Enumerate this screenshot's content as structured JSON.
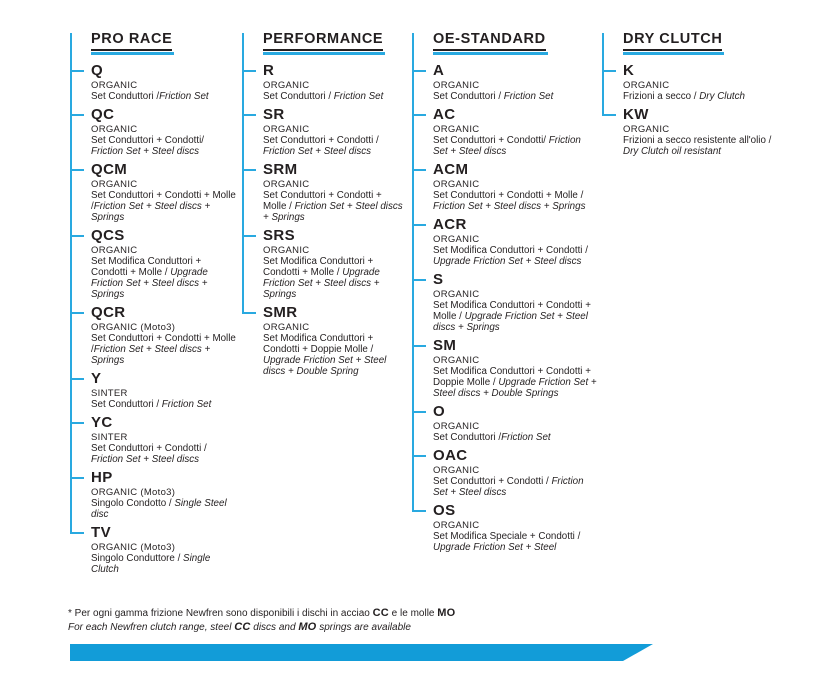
{
  "colors": {
    "accent_line": "#29A9E0",
    "stripe": "#129CD8",
    "text": "#231F20"
  },
  "columns": [
    {
      "title": "PRO RACE",
      "items": [
        {
          "code": "Q",
          "material": "ORGANIC",
          "desc_it": "Set Conduttori /",
          "desc_en": "Friction Set"
        },
        {
          "code": "QC",
          "material": "ORGANIC",
          "desc_it": "Set Conduttori + Condotti/ ",
          "desc_en": "Friction Set + Steel discs"
        },
        {
          "code": "QCM",
          "material": "ORGANIC",
          "desc_it": "Set Conduttori + Condotti + Molle /",
          "desc_en": "Friction Set + Steel discs + Springs"
        },
        {
          "code": "QCS",
          "material": "ORGANIC",
          "desc_it": "Set Modifica Conduttori + Condotti + Molle / ",
          "desc_en": "Upgrade Friction Set + Steel discs + Springs"
        },
        {
          "code": "QCR",
          "material": "ORGANIC (Moto3)",
          "desc_it": "Set Conduttori + Condotti + Molle /",
          "desc_en": "Friction Set + Steel discs + Springs"
        },
        {
          "code": "Y",
          "material": "SINTER",
          "desc_it": "Set Conduttori  / ",
          "desc_en": "Friction Set"
        },
        {
          "code": "YC",
          "material": "SINTER",
          "desc_it": "Set Conduttori + Condotti / ",
          "desc_en": "Friction Set + Steel discs"
        },
        {
          "code": "HP",
          "material": "ORGANIC (Moto3)",
          "desc_it": "Singolo Condotto / ",
          "desc_en": "Single Steel disc"
        },
        {
          "code": "TV",
          "material": "ORGANIC (Moto3)",
          "desc_it": "Singolo Conduttore / ",
          "desc_en": "Single Clutch"
        }
      ]
    },
    {
      "title": "PERFORMANCE",
      "items": [
        {
          "code": "R",
          "material": "ORGANIC",
          "desc_it": "Set Conduttori / ",
          "desc_en": "Friction Set"
        },
        {
          "code": "SR",
          "material": "ORGANIC",
          "desc_it": "Set Conduttori + Condotti / ",
          "desc_en": "Friction Set + Steel discs"
        },
        {
          "code": "SRM",
          "material": "ORGANIC",
          "desc_it": "Set Conduttori + Condotti + Molle / ",
          "desc_en": "Friction Set + Steel discs + Springs"
        },
        {
          "code": "SRS",
          "material": "ORGANIC",
          "desc_it": "Set Modifica Conduttori + Condotti + Molle / ",
          "desc_en": "Upgrade Friction Set + Steel discs + Springs"
        },
        {
          "code": "SMR",
          "material": "ORGANIC",
          "desc_it": "Set Modifica Conduttori + Condotti + Doppie Molle / ",
          "desc_en": "Upgrade Friction Set + Steel discs + Double Spring"
        }
      ]
    },
    {
      "title": "OE-STANDARD",
      "items": [
        {
          "code": "A",
          "material": "ORGANIC",
          "desc_it": "Set Conduttori  / ",
          "desc_en": "Friction Set"
        },
        {
          "code": "AC",
          "material": "ORGANIC",
          "desc_it": "Set Conduttori + Condotti/ ",
          "desc_en": "Friction Set + Steel discs"
        },
        {
          "code": "ACM",
          "material": "ORGANIC",
          "desc_it": "Set Conduttori + Condotti + Molle / ",
          "desc_en": "Friction Set + Steel discs + Springs"
        },
        {
          "code": "ACR",
          "material": "ORGANIC",
          "desc_it": "Set Modifica Conduttori + Condotti / ",
          "desc_en": "Upgrade Friction Set + Steel discs"
        },
        {
          "code": "S",
          "material": "ORGANIC",
          "desc_it": "Set Modifica Conduttori + Condotti + Molle / ",
          "desc_en": "Upgrade Friction Set + Steel discs + Springs"
        },
        {
          "code": "SM",
          "material": "ORGANIC",
          "desc_it": "Set Modifica Conduttori + Condotti + Doppie Molle / ",
          "desc_en": "Upgrade Friction Set + Steel discs + Double Springs"
        },
        {
          "code": "O",
          "material": "ORGANIC",
          "desc_it": "Set Conduttori /",
          "desc_en": "Friction Set"
        },
        {
          "code": "OAC",
          "material": "ORGANIC",
          "desc_it": "Set Conduttori + Condotti / ",
          "desc_en": "Friction Set + Steel discs"
        },
        {
          "code": "OS",
          "material": "ORGANIC",
          "desc_it": "Set Modifica Speciale + Condotti / ",
          "desc_en": "Upgrade Friction Set + Steel"
        }
      ]
    },
    {
      "title": "DRY CLUTCH",
      "items": [
        {
          "code": "K",
          "material": "ORGANIC",
          "desc_it": "Frizioni a secco / ",
          "desc_en": "Dry Clutch"
        },
        {
          "code": "KW",
          "material": "ORGANIC",
          "desc_it": "Frizioni a secco resistente all'olio  / ",
          "desc_en": "Dry Clutch oil resistant"
        }
      ]
    }
  ],
  "footnote": {
    "line1": {
      "text1": "* Per ogni gamma frizione Newfren sono disponibili i dischi in acciao ",
      "bold1": "CC",
      "text2": " e le molle ",
      "bold2": "MO"
    },
    "line2": {
      "text1": "For each Newfren clutch range, steel ",
      "bold1": "CC",
      "text2": " discs and ",
      "bold2": "MO",
      "text3": " springs are available"
    }
  }
}
